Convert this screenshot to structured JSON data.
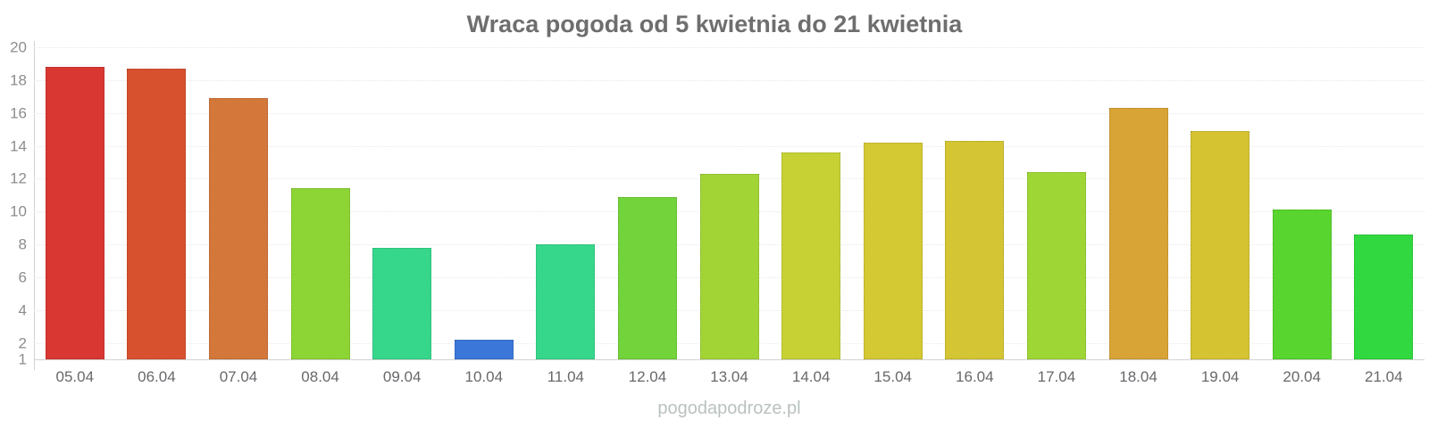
{
  "title": "Wraca pogoda od 5 kwietnia do 21 kwietnia",
  "watermark": "pogodapodroze.pl",
  "chart_data": {
    "type": "bar",
    "title": "Wraca pogoda od 5 kwietnia do 21 kwietnia",
    "categories": [
      "05.04",
      "06.04",
      "07.04",
      "08.04",
      "09.04",
      "10.04",
      "11.04",
      "12.04",
      "13.04",
      "14.04",
      "15.04",
      "16.04",
      "17.04",
      "18.04",
      "19.04",
      "20.04",
      "21.04"
    ],
    "values": [
      18.8,
      18.7,
      16.9,
      11.4,
      7.8,
      2.2,
      8.0,
      10.9,
      12.3,
      13.6,
      14.2,
      14.3,
      12.4,
      16.3,
      14.9,
      10.1,
      8.6
    ],
    "bar_colors": [
      "#d93732",
      "#d8512f",
      "#d3773a",
      "#8dd535",
      "#36d78b",
      "#3b76d9",
      "#36d78b",
      "#72d43a",
      "#a3d436",
      "#c7d134",
      "#d4c833",
      "#d3c533",
      "#9ed636",
      "#d8a435",
      "#d5c331",
      "#58d52e",
      "#31d83f"
    ],
    "xlabel": "",
    "ylabel": "",
    "ylim": [
      1,
      20
    ],
    "yticks": [
      20,
      18,
      16,
      14,
      12,
      10,
      8,
      6,
      4,
      2,
      1
    ],
    "grid": true,
    "legend": false
  },
  "style": {
    "background": "#ffffff",
    "title_color": "#6e6e6e",
    "y_label_color": "#8b8d8f",
    "x_label_color": "#66686b",
    "grid_color": "#e9e9e9",
    "axis_color": "#d2d2d2",
    "watermark_color": "#b9c2be"
  }
}
